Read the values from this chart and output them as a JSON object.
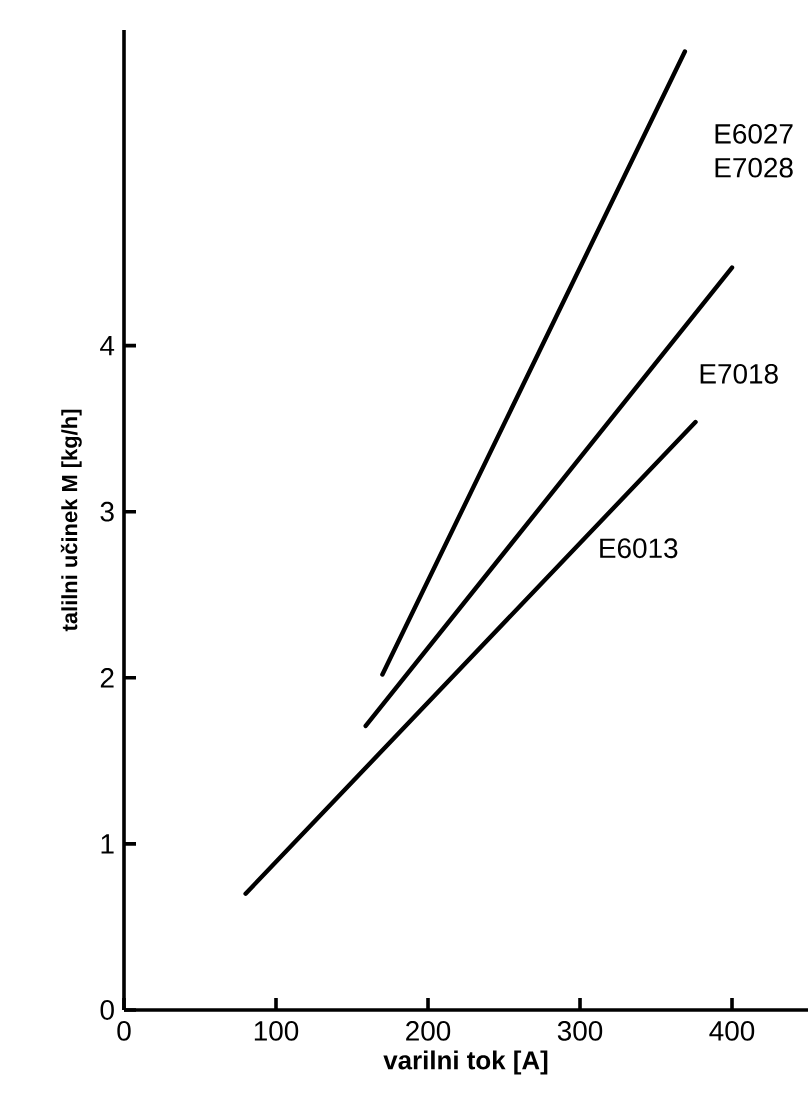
{
  "chart_data": {
    "type": "line",
    "xlabel": "varilni tok [A]",
    "ylabel": "talilni učinek M [kg/h]",
    "xlim": [
      0,
      450
    ],
    "ylim": [
      0,
      5.9
    ],
    "xticks": [
      0,
      100,
      200,
      300,
      400
    ],
    "yticks": [
      0,
      1,
      2,
      3,
      4
    ],
    "grid": false,
    "legend": false,
    "marker": "none",
    "line_style": "solid",
    "series": [
      {
        "name": "E6027 E7028",
        "color": "#000000",
        "x": [
          170,
          369
        ],
        "values": [
          2.02,
          5.77
        ]
      },
      {
        "name": "E7018",
        "color": "#000000",
        "x": [
          159,
          400
        ],
        "values": [
          1.71,
          4.47
        ]
      },
      {
        "name": "E6013",
        "color": "#000000",
        "x": [
          80,
          376
        ],
        "values": [
          0.7,
          3.54
        ]
      }
    ]
  }
}
